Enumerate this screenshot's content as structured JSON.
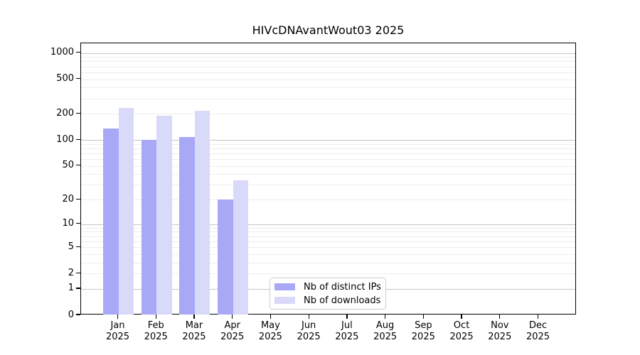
{
  "title": "HIVcDNAvantWout03 2025",
  "colors": {
    "distinct_ips_bar": "#a8a8f7",
    "downloads_bar": "#d9d9f9",
    "grid_major": "#c6c6c6",
    "grid_minor": "#ededed",
    "axis": "#000000",
    "background": "#ffffff"
  },
  "legend": {
    "items": [
      {
        "label": "Nb of distinct IPs",
        "color": "#a8a8f7"
      },
      {
        "label": "Nb of downloads",
        "color": "#d9d9f9"
      }
    ]
  },
  "chart_data": {
    "type": "bar",
    "title": "HIVcDNAvantWout03 2025",
    "categories": [
      "Jan",
      "Feb",
      "Mar",
      "Apr",
      "May",
      "Jun",
      "Jul",
      "Aug",
      "Sep",
      "Oct",
      "Nov",
      "Dec"
    ],
    "category_year": "2025",
    "series": [
      {
        "name": "Nb of distinct IPs",
        "color": "#a8a8f7",
        "values": [
          136,
          100,
          109,
          20,
          0,
          0,
          0,
          0,
          0,
          0,
          0,
          0
        ]
      },
      {
        "name": "Nb of downloads",
        "color": "#d9d9f9",
        "values": [
          236,
          190,
          217,
          34,
          0,
          0,
          0,
          0,
          0,
          0,
          0,
          0
        ]
      }
    ],
    "xlabel": "",
    "ylabel": "",
    "y_scale": "log1p",
    "ylim": [
      0,
      1300
    ],
    "y_ticks": [
      0,
      1,
      2,
      5,
      10,
      20,
      50,
      100,
      200,
      500,
      1000
    ],
    "grid": {
      "major": [
        1,
        10,
        100,
        1000
      ],
      "minor": [
        2,
        3,
        4,
        5,
        6,
        7,
        8,
        9,
        20,
        30,
        40,
        50,
        60,
        70,
        80,
        90,
        200,
        300,
        400,
        500,
        600,
        700,
        800,
        900
      ]
    },
    "legend_position": "lower center",
    "legend_entries": [
      "Nb of distinct IPs",
      "Nb of downloads"
    ]
  }
}
